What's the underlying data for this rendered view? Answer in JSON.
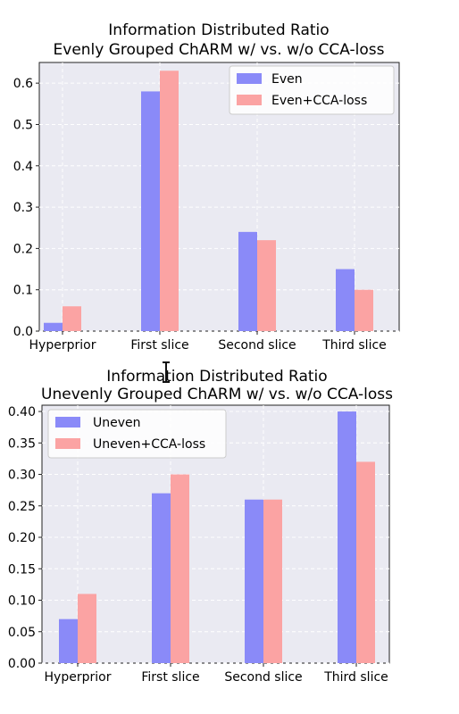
{
  "chart_data": [
    {
      "type": "bar",
      "title": "Information Distributed Ratio",
      "subtitle": "Evenly Grouped ChARM w/ vs. w/o CCA-loss",
      "categories": [
        "Hyperprior",
        "First slice",
        "Second slice",
        "Third slice"
      ],
      "series": [
        {
          "name": "Even",
          "color": "#8a8af8",
          "values": [
            0.02,
            0.58,
            0.24,
            0.15
          ]
        },
        {
          "name": "Even+CCA-loss",
          "color": "#fba3a3",
          "values": [
            0.06,
            0.63,
            0.22,
            0.1
          ]
        }
      ],
      "yticks": [
        "0.0",
        "0.1",
        "0.2",
        "0.3",
        "0.4",
        "0.5",
        "0.6"
      ],
      "ylim": [
        0,
        0.65
      ],
      "grid": true,
      "legend_position": "top-right",
      "background": "#eaeaf2"
    },
    {
      "type": "bar",
      "title": "Information Distributed Ratio",
      "subtitle": "Unevenly Grouped ChARM w/ vs. w/o CCA-loss",
      "categories": [
        "Hyperprior",
        "First slice",
        "Second slice",
        "Third slice"
      ],
      "series": [
        {
          "name": "Uneven",
          "color": "#8a8af8",
          "values": [
            0.07,
            0.27,
            0.26,
            0.4
          ]
        },
        {
          "name": "Uneven+CCA-loss",
          "color": "#fba3a3",
          "values": [
            0.11,
            0.3,
            0.26,
            0.32
          ]
        }
      ],
      "yticks": [
        "0.00",
        "0.05",
        "0.10",
        "0.15",
        "0.20",
        "0.25",
        "0.30",
        "0.35",
        "0.40"
      ],
      "ylim": [
        0,
        0.41
      ],
      "grid": true,
      "legend_position": "top-left",
      "background": "#eaeaf2"
    }
  ]
}
